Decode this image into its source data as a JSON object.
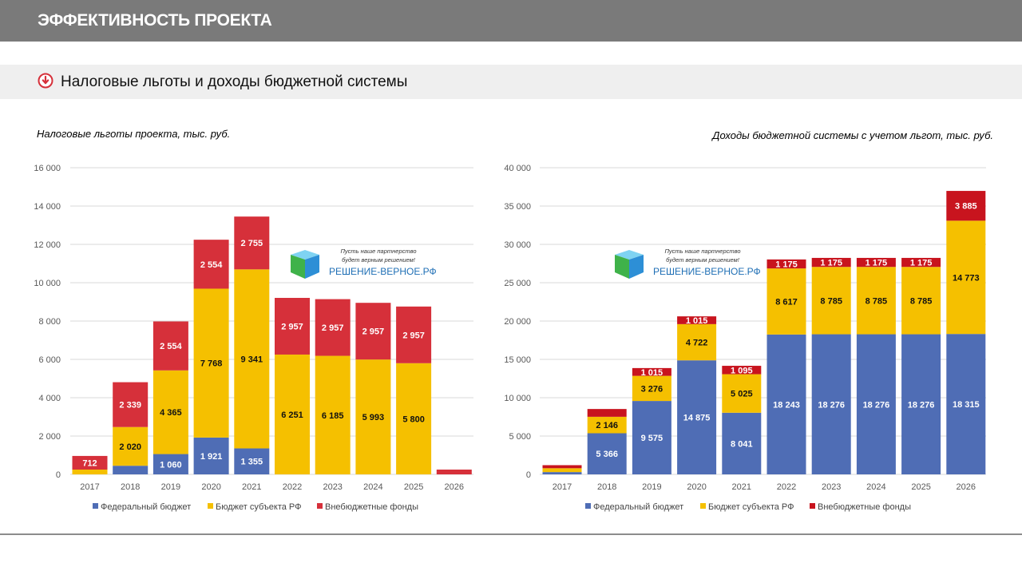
{
  "header": {
    "title": "ЭФФЕКТИВНОСТЬ ПРОЕКТА"
  },
  "section": {
    "title": "Налоговые льготы и доходы бюджетной системы"
  },
  "logo": {
    "slogan_line1": "Пусть наше партнерство",
    "slogan_line2": "будет верным решением!",
    "name": "РЕШЕНИЕ-ВЕРНОЕ.РФ"
  },
  "colors": {
    "federal": "#4f6db5",
    "subject": "#f5c000",
    "extra_left": "#d6303a",
    "extra_right": "#c8141e"
  },
  "chart_data": [
    {
      "type": "bar",
      "stacked": true,
      "title": "Налоговые льготы проекта, тыс. руб.",
      "categories": [
        "2017",
        "2018",
        "2019",
        "2020",
        "2021",
        "2022",
        "2023",
        "2024",
        "2025",
        "2026"
      ],
      "series": [
        {
          "name": "Федеральный бюджет",
          "values": [
            null,
            450,
            1060,
            1921,
            1355,
            null,
            null,
            null,
            null,
            null
          ]
        },
        {
          "name": "Бюджет субъекта РФ",
          "values": [
            250,
            2020,
            4365,
            7768,
            9341,
            6251,
            6185,
            5993,
            5800,
            null
          ]
        },
        {
          "name": "Внебюджетные фонды",
          "values": [
            712,
            2339,
            2554,
            2554,
            2755,
            2957,
            2957,
            2957,
            2957,
            250
          ]
        }
      ],
      "labels": [
        [
          "",
          "",
          "1 060",
          "1 921",
          "1 355",
          "",
          "",
          "",
          "",
          ""
        ],
        [
          "",
          "2 020",
          "4 365",
          "7 768",
          "9 341",
          "6 251",
          "6 185",
          "5 993",
          "5 800",
          ""
        ],
        [
          "712",
          "2 339",
          "2 554",
          "2 554",
          "2 755",
          "2 957",
          "2 957",
          "2 957",
          "2 957",
          ""
        ]
      ],
      "ylim": [
        0,
        16000
      ],
      "yticks": [
        "0",
        "2 000",
        "4 000",
        "6 000",
        "8 000",
        "10 000",
        "12 000",
        "14 000",
        "16 000"
      ],
      "grid": true,
      "legend": "bottom"
    },
    {
      "type": "bar",
      "stacked": true,
      "title": "Доходы бюджетной системы с учетом льгот, тыс. руб.",
      "categories": [
        "2017",
        "2018",
        "2019",
        "2020",
        "2021",
        "2022",
        "2023",
        "2024",
        "2025",
        "2026"
      ],
      "series": [
        {
          "name": "Федеральный бюджет",
          "values": [
            300,
            5366,
            9575,
            14875,
            8041,
            18243,
            18276,
            18276,
            18276,
            18315
          ]
        },
        {
          "name": "Бюджет субъекта РФ",
          "values": [
            500,
            2146,
            3276,
            4722,
            5025,
            8617,
            8785,
            8785,
            8785,
            14773
          ]
        },
        {
          "name": "Внебюджетные фонды",
          "values": [
            400,
            1015,
            1015,
            1015,
            1095,
            1175,
            1175,
            1175,
            1175,
            3885
          ]
        }
      ],
      "labels": [
        [
          "",
          "5 366",
          "9 575",
          "14 875",
          "8 041",
          "18 243",
          "18 276",
          "18 276",
          "18 276",
          "18 315"
        ],
        [
          "",
          "2 146",
          "3 276",
          "4 722",
          "5 025",
          "8 617",
          "8 785",
          "8 785",
          "8 785",
          "14 773"
        ],
        [
          "",
          "",
          "1 015",
          "1 015",
          "1 095",
          "1 175",
          "1 175",
          "1 175",
          "1 175",
          "3 885"
        ]
      ],
      "ylim": [
        0,
        40000
      ],
      "yticks": [
        "0",
        "5 000",
        "10 000",
        "15 000",
        "20 000",
        "25 000",
        "30 000",
        "35 000",
        "40 000"
      ],
      "grid": true,
      "legend": "bottom"
    }
  ]
}
